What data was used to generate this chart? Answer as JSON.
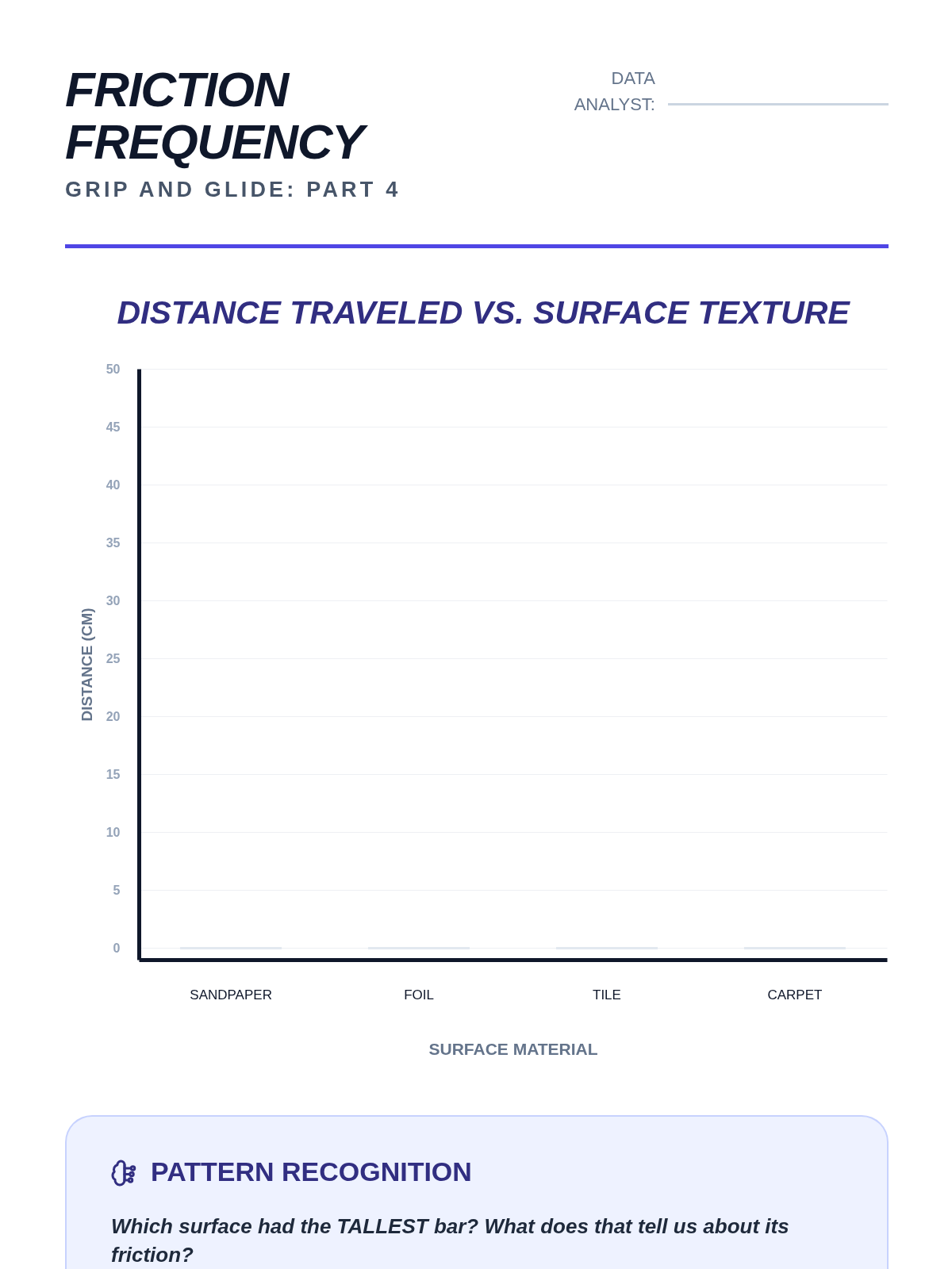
{
  "chart_data": [
    {
      "type": "other",
      "title": "FRICTION FREQUENCY",
      "subtitle": "GRIP AND GLIDE: PART 4",
      "annotations": [
        "DATA ANALYST:"
      ]
    },
    {
      "type": "bar",
      "title": "DISTANCE TRAVELED VS. SURFACE TEXTURE",
      "xlabel": "SURFACE MATERIAL",
      "ylabel": "DISTANCE (CM)",
      "categories": [
        "SANDPAPER",
        "FOIL",
        "TILE",
        "CARPET"
      ],
      "values": [
        0,
        0,
        0,
        0
      ],
      "color": "#e2e8f0",
      "ylim": [
        -1,
        50
      ],
      "yticks": [
        0,
        5,
        10,
        15,
        20,
        25,
        30,
        35,
        40,
        45,
        50
      ],
      "grid": true
    },
    {
      "type": "other",
      "title": "PATTERN RECOGNITION",
      "annotations": [
        "Which surface had the TALLEST bar? What does that tell us about its friction?"
      ]
    }
  ]
}
